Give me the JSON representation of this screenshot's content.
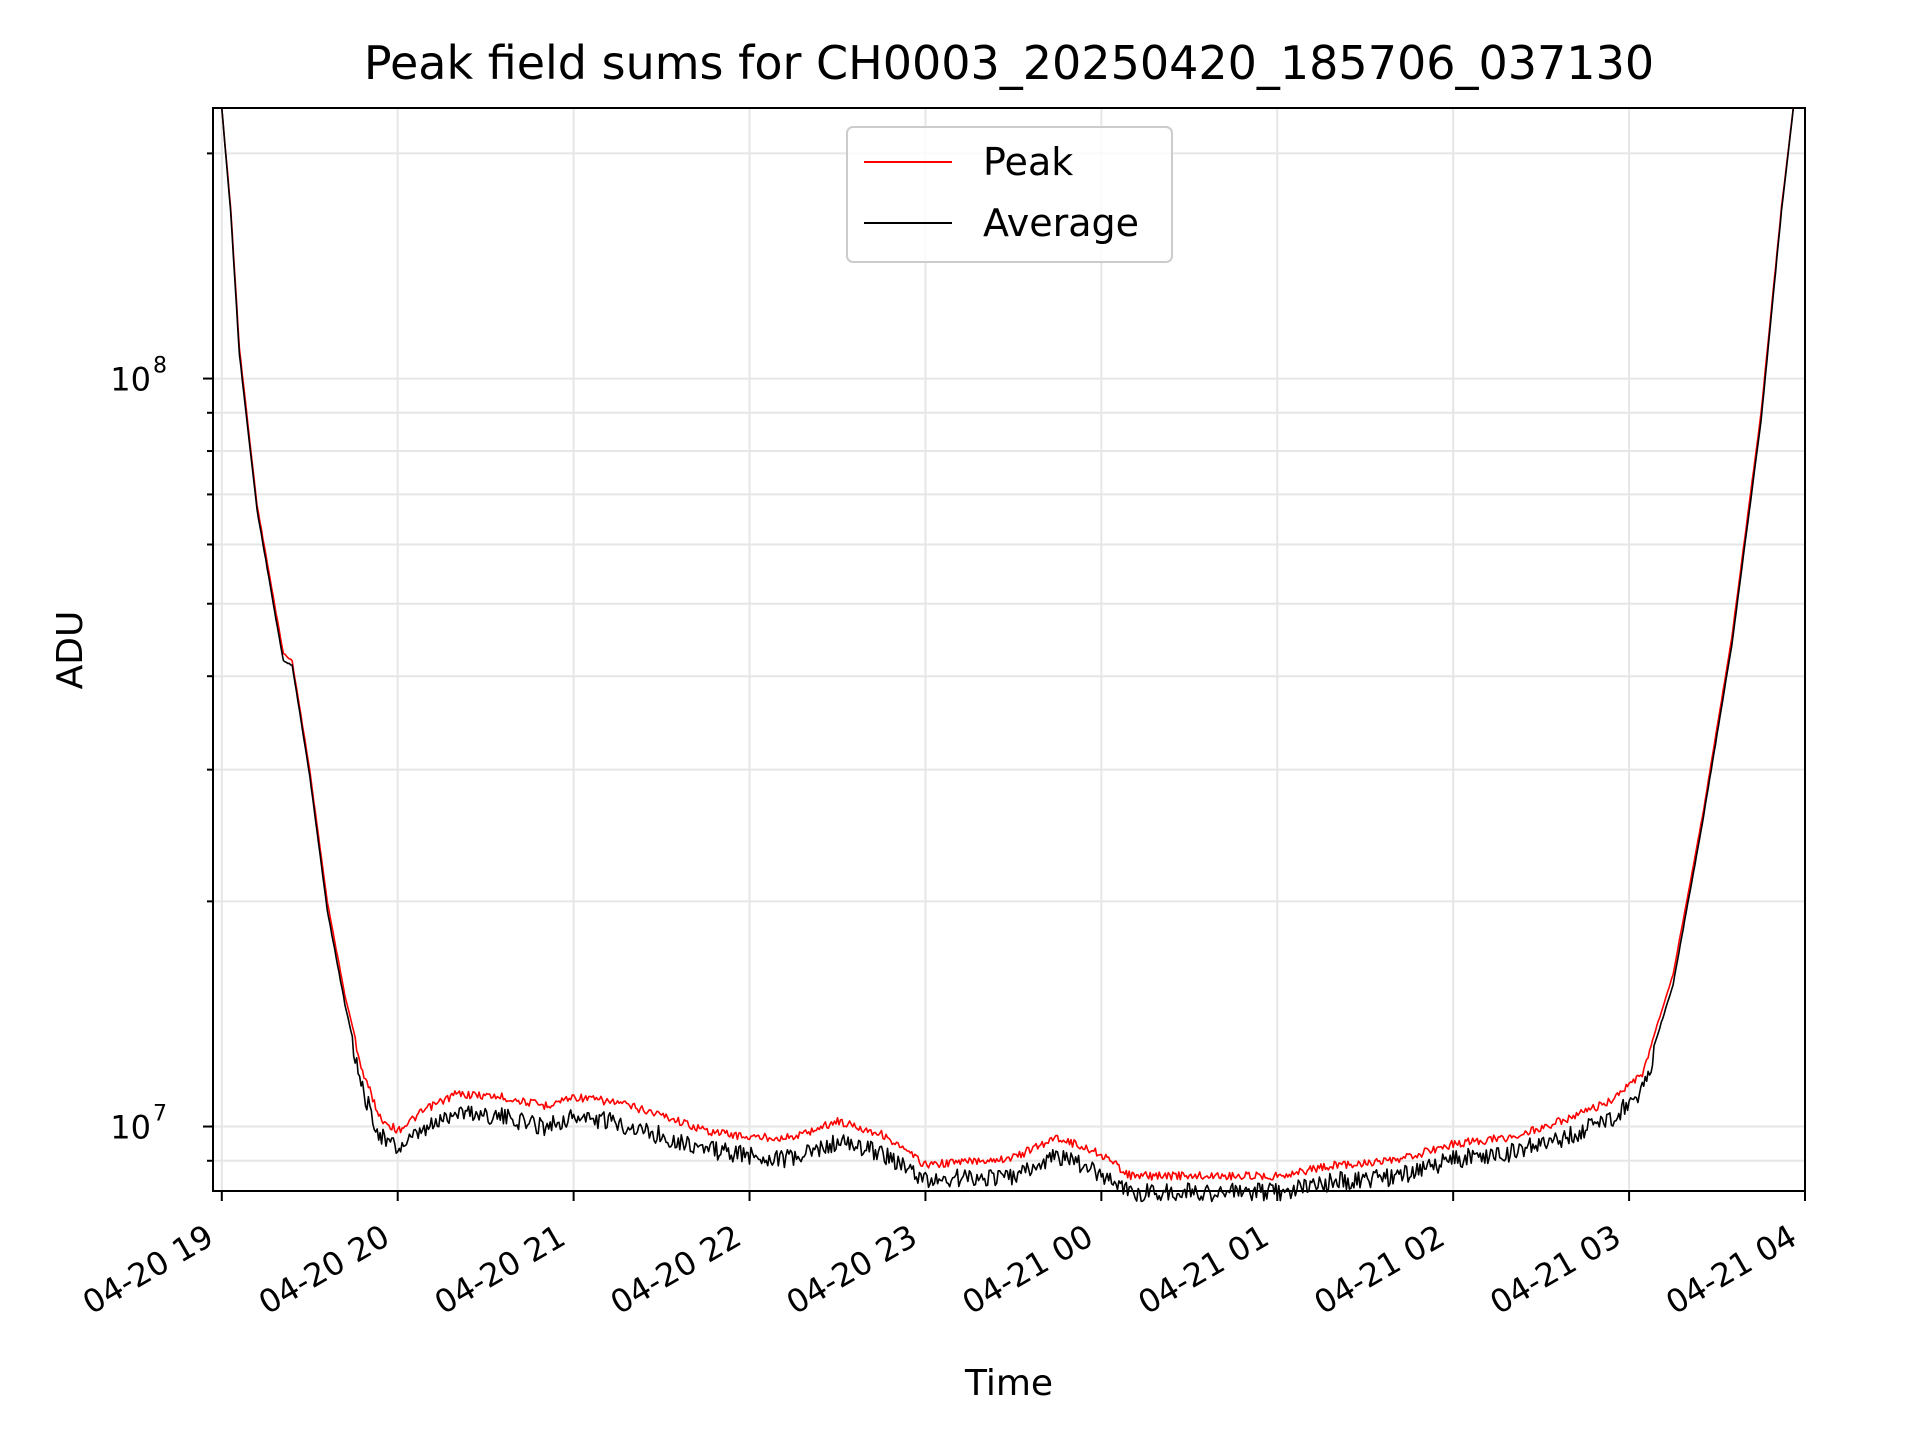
{
  "chart_data": {
    "type": "line",
    "title": "Peak field sums for CH0003_20250420_185706_037130",
    "xlabel": "Time",
    "ylabel": "ADU",
    "y_scale": "log",
    "ylim": [
      8200000,
      230000000
    ],
    "xlim": [
      "2025-04-20 18:57",
      "2025-04-21 04:00"
    ],
    "grid": true,
    "legend_position": "top-center",
    "x_ticks": [
      "04-20 19",
      "04-20 20",
      "04-20 21",
      "04-20 22",
      "04-20 23",
      "04-21 00",
      "04-21 01",
      "04-21 02",
      "04-21 03",
      "04-21 04"
    ],
    "y_ticks": [
      "10^8",
      "10^7"
    ],
    "series": [
      {
        "name": "Peak",
        "color": "#ff0000",
        "points": [
          [
            "2025-04-20 19:00",
            230000000
          ],
          [
            "2025-04-20 19:03",
            170000000
          ],
          [
            "2025-04-20 19:06",
            110000000
          ],
          [
            "2025-04-20 19:12",
            68000000
          ],
          [
            "2025-04-20 19:18",
            50000000
          ],
          [
            "2025-04-20 19:21",
            43000000
          ],
          [
            "2025-04-20 19:24",
            42000000
          ],
          [
            "2025-04-20 19:30",
            30000000
          ],
          [
            "2025-04-20 19:36",
            20000000
          ],
          [
            "2025-04-20 19:42",
            15000000
          ],
          [
            "2025-04-20 19:48",
            12000000
          ],
          [
            "2025-04-20 19:54",
            10400000
          ],
          [
            "2025-04-20 20:00",
            10000000
          ],
          [
            "2025-04-20 20:10",
            10700000
          ],
          [
            "2025-04-20 20:20",
            11200000
          ],
          [
            "2025-04-20 20:35",
            11100000
          ],
          [
            "2025-04-20 20:50",
            10800000
          ],
          [
            "2025-04-20 21:00",
            11100000
          ],
          [
            "2025-04-20 21:15",
            10900000
          ],
          [
            "2025-04-20 21:30",
            10500000
          ],
          [
            "2025-04-20 21:45",
            10000000
          ],
          [
            "2025-04-20 22:00",
            9800000
          ],
          [
            "2025-04-20 22:15",
            9800000
          ],
          [
            "2025-04-20 22:30",
            10300000
          ],
          [
            "2025-04-20 22:45",
            9900000
          ],
          [
            "2025-04-20 23:00",
            9000000
          ],
          [
            "2025-04-20 23:15",
            9100000
          ],
          [
            "2025-04-20 23:30",
            9200000
          ],
          [
            "2025-04-20 23:45",
            9800000
          ],
          [
            "2025-04-21 00:00",
            9300000
          ],
          [
            "2025-04-21 00:10",
            8700000
          ],
          [
            "2025-04-21 00:30",
            8700000
          ],
          [
            "2025-04-21 01:00",
            8700000
          ],
          [
            "2025-04-21 01:20",
            9000000
          ],
          [
            "2025-04-21 01:40",
            9100000
          ],
          [
            "2025-04-21 02:00",
            9600000
          ],
          [
            "2025-04-21 02:20",
            9800000
          ],
          [
            "2025-04-21 02:40",
            10400000
          ],
          [
            "2025-04-21 02:55",
            11000000
          ],
          [
            "2025-04-21 03:05",
            12000000
          ],
          [
            "2025-04-21 03:15",
            16000000
          ],
          [
            "2025-04-21 03:25",
            26000000
          ],
          [
            "2025-04-21 03:35",
            45000000
          ],
          [
            "2025-04-21 03:45",
            90000000
          ],
          [
            "2025-04-21 03:52",
            170000000
          ],
          [
            "2025-04-21 03:56",
            230000000
          ]
        ]
      },
      {
        "name": "Average",
        "color": "#000000",
        "points": [
          [
            "2025-04-20 19:00",
            230000000
          ],
          [
            "2025-04-20 19:03",
            168000000
          ],
          [
            "2025-04-20 19:06",
            108000000
          ],
          [
            "2025-04-20 19:12",
            67000000
          ],
          [
            "2025-04-20 19:18",
            49000000
          ],
          [
            "2025-04-20 19:21",
            42000000
          ],
          [
            "2025-04-20 19:24",
            41500000
          ],
          [
            "2025-04-20 19:30",
            29500000
          ],
          [
            "2025-04-20 19:36",
            19500000
          ],
          [
            "2025-04-20 19:42",
            14600000
          ],
          [
            "2025-04-20 19:48",
            11500000
          ],
          [
            "2025-04-20 19:54",
            10000000
          ],
          [
            "2025-04-20 20:00",
            9600000
          ],
          [
            "2025-04-20 20:10",
            10200000
          ],
          [
            "2025-04-20 20:20",
            10800000
          ],
          [
            "2025-04-20 20:35",
            10600000
          ],
          [
            "2025-04-20 20:50",
            10300000
          ],
          [
            "2025-04-20 21:00",
            10600000
          ],
          [
            "2025-04-20 21:15",
            10400000
          ],
          [
            "2025-04-20 21:30",
            10000000
          ],
          [
            "2025-04-20 21:45",
            9600000
          ],
          [
            "2025-04-20 22:00",
            9400000
          ],
          [
            "2025-04-20 22:15",
            9300000
          ],
          [
            "2025-04-20 22:30",
            9800000
          ],
          [
            "2025-04-20 22:45",
            9500000
          ],
          [
            "2025-04-20 23:00",
            8700000
          ],
          [
            "2025-04-20 23:15",
            8800000
          ],
          [
            "2025-04-20 23:30",
            8800000
          ],
          [
            "2025-04-20 23:45",
            9400000
          ],
          [
            "2025-04-21 00:00",
            8900000
          ],
          [
            "2025-04-21 00:10",
            8400000
          ],
          [
            "2025-04-21 00:30",
            8400000
          ],
          [
            "2025-04-21 01:00",
            8400000
          ],
          [
            "2025-04-21 01:20",
            8700000
          ],
          [
            "2025-04-21 01:40",
            8800000
          ],
          [
            "2025-04-21 02:00",
            9300000
          ],
          [
            "2025-04-21 02:20",
            9500000
          ],
          [
            "2025-04-21 02:40",
            10000000
          ],
          [
            "2025-04-21 02:55",
            10600000
          ],
          [
            "2025-04-21 03:05",
            11600000
          ],
          [
            "2025-04-21 03:15",
            15500000
          ],
          [
            "2025-04-21 03:25",
            25500000
          ],
          [
            "2025-04-21 03:35",
            44000000
          ],
          [
            "2025-04-21 03:45",
            88000000
          ],
          [
            "2025-04-21 03:52",
            168000000
          ],
          [
            "2025-04-21 03:56",
            230000000
          ]
        ]
      }
    ]
  }
}
